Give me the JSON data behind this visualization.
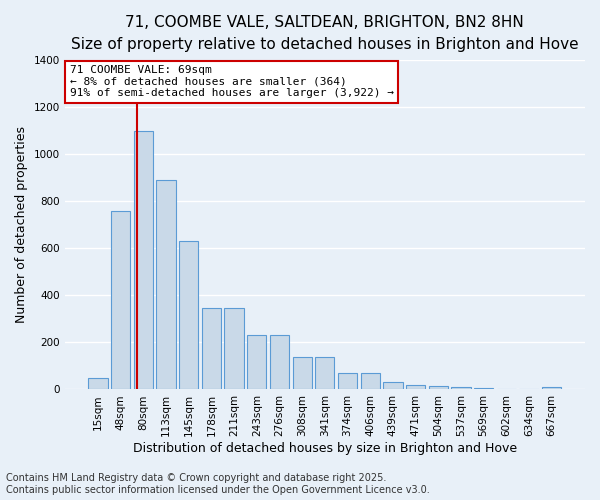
{
  "title_line1": "71, COOMBE VALE, SALTDEAN, BRIGHTON, BN2 8HN",
  "title_line2": "Size of property relative to detached houses in Brighton and Hove",
  "xlabel": "Distribution of detached houses by size in Brighton and Hove",
  "ylabel": "Number of detached properties",
  "categories": [
    "15sqm",
    "48sqm",
    "80sqm",
    "113sqm",
    "145sqm",
    "178sqm",
    "211sqm",
    "243sqm",
    "276sqm",
    "308sqm",
    "341sqm",
    "374sqm",
    "406sqm",
    "439sqm",
    "471sqm",
    "504sqm",
    "537sqm",
    "569sqm",
    "602sqm",
    "634sqm",
    "667sqm"
  ],
  "values": [
    50,
    760,
    1100,
    890,
    630,
    345,
    345,
    230,
    230,
    140,
    140,
    70,
    70,
    30,
    20,
    15,
    12,
    5,
    4,
    2,
    10
  ],
  "bar_color": "#c9d9e8",
  "bar_edge_color": "#5b9bd5",
  "annotation_text": "71 COOMBE VALE: 69sqm\n← 8% of detached houses are smaller (364)\n91% of semi-detached houses are larger (3,922) →",
  "annotation_box_color": "#ffffff",
  "annotation_box_edge_color": "#cc0000",
  "vline_color": "#cc0000",
  "ylim": [
    0,
    1400
  ],
  "yticks": [
    0,
    200,
    400,
    600,
    800,
    1000,
    1200,
    1400
  ],
  "background_color": "#e8f0f8",
  "grid_color": "#ffffff",
  "footer_line1": "Contains HM Land Registry data © Crown copyright and database right 2025.",
  "footer_line2": "Contains public sector information licensed under the Open Government Licence v3.0.",
  "title_fontsize": 11,
  "subtitle_fontsize": 10,
  "axis_fontsize": 9,
  "tick_fontsize": 7.5,
  "footer_fontsize": 7,
  "vline_x": 1.72
}
